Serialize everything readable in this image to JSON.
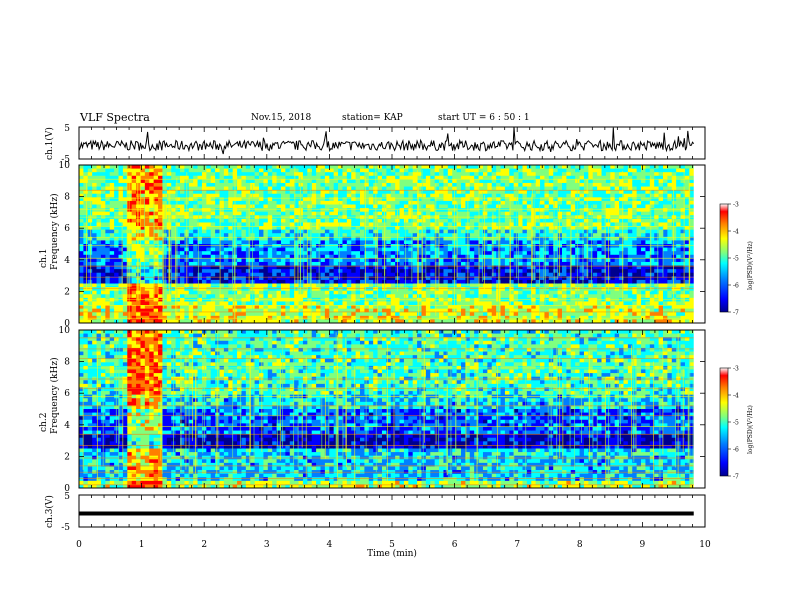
{
  "header": {
    "title": "VLF Spectra",
    "date": "Nov.15, 2018",
    "station": "station= KAP",
    "start_ut": "start UT =  6 : 50 : 1"
  },
  "chart_data": [
    {
      "type": "line",
      "ylabel": "ch.1(V)",
      "ylim": [
        -5,
        5
      ],
      "yticks": [
        "5",
        "-5"
      ],
      "xlim": [
        0,
        10
      ],
      "series": [
        {
          "values": "noisy trace around -1 V between 0 and 9.8 min"
        }
      ]
    },
    {
      "type": "heatmap",
      "ylabel": "ch.1 Frequency (kHz)",
      "ylim": [
        0,
        10
      ],
      "yticks": [
        "0",
        "2",
        "4",
        "6",
        "8",
        "10"
      ],
      "xlim": [
        0,
        10
      ],
      "colorbar": {
        "label": "log(PSD)(V²/Hz)",
        "range": [
          -7,
          -3
        ],
        "ticks": [
          "-3",
          "-4",
          "-5",
          "-6",
          "-7"
        ]
      }
    },
    {
      "type": "heatmap",
      "ylabel": "ch.2 Frequency (kHz)",
      "ylim": [
        0,
        10
      ],
      "yticks": [
        "0",
        "2",
        "4",
        "6",
        "8",
        "10"
      ],
      "xlim": [
        0,
        10
      ],
      "colorbar": {
        "label": "log(PSD)(V²/Hz)",
        "range": [
          -7,
          -3
        ],
        "ticks": [
          "-3",
          "-4",
          "-5",
          "-6",
          "-7"
        ]
      }
    },
    {
      "type": "line",
      "ylabel": "ch.3(V)",
      "ylim": [
        -5,
        5
      ],
      "yticks": [
        "5",
        "-5"
      ],
      "xlabel": "Time (min)",
      "xlim": [
        0,
        10
      ],
      "xticks": [
        "0",
        "1",
        "2",
        "3",
        "4",
        "5",
        "6",
        "7",
        "8",
        "9",
        "10"
      ],
      "series": [
        {
          "values": "flat trace at about -1 V between 0 and 9.8 min"
        }
      ]
    }
  ],
  "colors": {
    "colormap": [
      "#00008f",
      "#0000ff",
      "#007fff",
      "#00ffff",
      "#7fff7f",
      "#ffff00",
      "#ff7f00",
      "#ff0000",
      "#ffffff"
    ]
  }
}
